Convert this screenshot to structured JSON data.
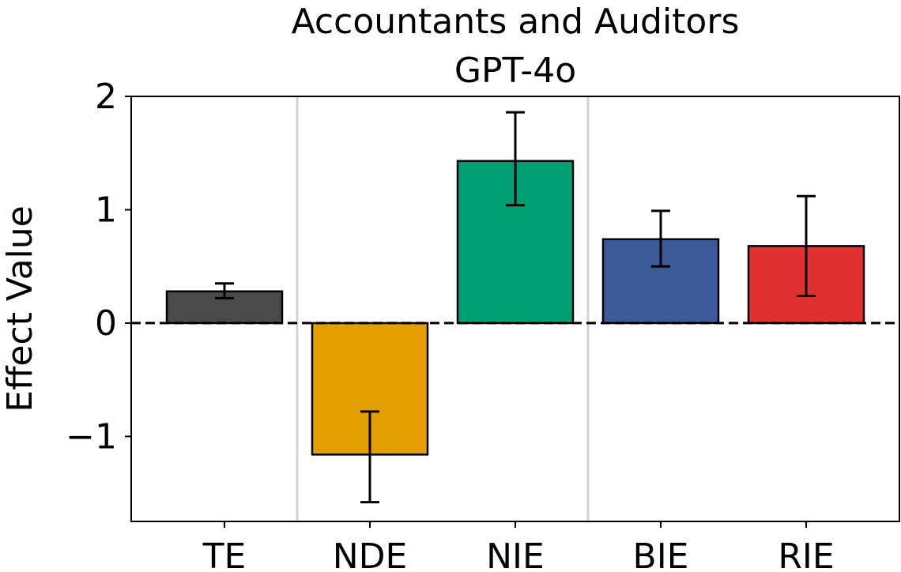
{
  "chart_data": {
    "type": "bar",
    "title": "Accountants and Auditors",
    "subtitle": "GPT-4o",
    "xlabel": "",
    "ylabel": "Effect Value",
    "ylim": [
      -1.75,
      2.0
    ],
    "yticks": [
      2,
      1,
      0,
      -1
    ],
    "ytick_labels": [
      "2",
      "1",
      "0",
      "−1"
    ],
    "categories": [
      "TE",
      "NDE",
      "NIE",
      "BIE",
      "RIE"
    ],
    "values": [
      0.28,
      -1.16,
      1.43,
      0.74,
      0.68
    ],
    "error_low": [
      0.22,
      -1.58,
      1.04,
      0.5,
      0.24
    ],
    "error_high": [
      0.35,
      -0.78,
      1.86,
      0.99,
      1.12
    ],
    "colors": [
      "#4a4a4a",
      "#e69f00",
      "#009e73",
      "#3c5a9a",
      "#e03131"
    ],
    "group_separators_after": [
      0,
      2
    ],
    "zero_line": "dashed",
    "grid": false
  }
}
